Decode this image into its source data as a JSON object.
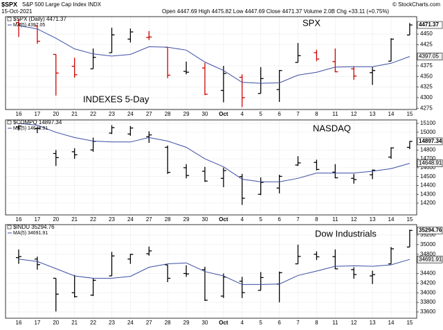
{
  "header": {
    "symbol": "$SPX",
    "name": "S&P 500 Large Cap Index INDX",
    "date": "15-Oct-2021",
    "quote": "Open 4447.69 High 4475.82 Low 4447.69 Close 4471.37 Volume 2.0B Chg +33.11 (+0.75%)",
    "source": "© StockCharts.com"
  },
  "chart_data": [
    {
      "type": "ohlc",
      "title": "SPX",
      "annotation": "INDEXES 5-Day",
      "grid": true,
      "categories": [
        "16",
        "17",
        "20",
        "21",
        "22",
        "23",
        "24",
        "27",
        "28",
        "29",
        "30",
        "Oct",
        "4",
        "5",
        "6",
        "7",
        "8",
        "11",
        "12",
        "13",
        "14",
        "15"
      ],
      "ylim": [
        4272,
        4491
      ],
      "yticks": [
        4275,
        4300,
        4325,
        4350,
        4375,
        4425,
        4450
      ],
      "series": [
        {
          "name": "$SPX (Daily) 4471.37",
          "last_value": 4471.37,
          "open": [
            4477,
            4469,
            4402,
            4374,
            4368,
            4406,
            4438,
            4442,
            4419,
            4362,
            4370,
            4317,
            4348,
            4310,
            4319,
            4383,
            4406,
            4385,
            4368,
            4359,
            4386,
            4447.69
          ],
          "high": [
            4485,
            4471,
            4402,
            4394,
            4416,
            4465,
            4463,
            4457,
            4419,
            4385,
            4382,
            4375,
            4355,
            4372,
            4365,
            4429,
            4413,
            4416,
            4374,
            4372,
            4440,
            4475.82
          ],
          "low": [
            4443,
            4427,
            4305,
            4347,
            4368,
            4406,
            4430,
            4436,
            4346,
            4355,
            4306,
            4289,
            4278,
            4310,
            4290,
            4383,
            4386,
            4360,
            4342,
            4330,
            4386,
            4447.69
          ],
          "close": [
            4474,
            4433,
            4358,
            4354,
            4395,
            4448,
            4455,
            4443,
            4353,
            4360,
            4308,
            4357,
            4300,
            4345,
            4364,
            4399,
            4391,
            4361,
            4351,
            4364,
            4438,
            4471.37
          ],
          "colors": [
            "#cc0000",
            "#cc0000",
            "#cc0000",
            "#cc0000",
            "#000000",
            "#000000",
            "#000000",
            "#cc0000",
            "#cc0000",
            "#000000",
            "#cc0000",
            "#000000",
            "#cc0000",
            "#000000",
            "#000000",
            "#000000",
            "#cc0000",
            "#cc0000",
            "#cc0000",
            "#000000",
            "#000000",
            "#000000"
          ]
        },
        {
          "name": "MA(5) 4397.05",
          "color": "#3b4ea3",
          "last_value": 4397.05,
          "values": [
            4470,
            4462,
            4440,
            4415,
            4403,
            4398,
            4402,
            4420,
            4419,
            4412,
            4384,
            4364,
            4336,
            4334,
            4335,
            4353,
            4360,
            4372,
            4373,
            4373,
            4381,
            4397.05
          ]
        }
      ]
    },
    {
      "type": "ohlc",
      "title": "NASDAQ",
      "grid": true,
      "categories": [
        "16",
        "17",
        "20",
        "21",
        "22",
        "23",
        "24",
        "27",
        "28",
        "29",
        "30",
        "Oct",
        "4",
        "5",
        "6",
        "7",
        "8",
        "11",
        "12",
        "13",
        "14",
        "15"
      ],
      "ylim": [
        14067,
        15139
      ],
      "yticks": [
        14200,
        14300,
        14400,
        14500,
        14600,
        14700,
        14800,
        15000,
        15100
      ],
      "series": [
        {
          "name": "$COMPQ 14897.34",
          "last_value": 14897.34,
          "color": "#000000",
          "open": [
            15060,
            15040,
            14760,
            14780,
            14800,
            14990,
            14980,
            14950,
            14830,
            14600,
            14560,
            14480,
            14500,
            14300,
            14370,
            14630,
            14660,
            14550,
            14480,
            14520,
            14720,
            14830
          ],
          "high": [
            15080,
            15050,
            14800,
            14820,
            14940,
            15080,
            15070,
            15010,
            14850,
            14640,
            14610,
            14600,
            14530,
            14490,
            14520,
            14730,
            14690,
            14640,
            14530,
            14580,
            14830,
            14900
          ],
          "low": [
            15020,
            14990,
            14620,
            14700,
            14780,
            14980,
            14960,
            14880,
            14530,
            14480,
            14440,
            14380,
            14180,
            14290,
            14310,
            14620,
            14570,
            14480,
            14420,
            14470,
            14700,
            14810
          ],
          "close": [
            15070,
            15044,
            14714,
            14746,
            14897,
            15052,
            15048,
            14970,
            14547,
            14512,
            14449,
            14567,
            14255,
            14434,
            14502,
            14654,
            14580,
            14486,
            14466,
            14572,
            14823,
            14897.34
          ]
        },
        {
          "name": "MA(5) 14648.91",
          "color": "#3b4ea3",
          "last_value": 14648.91,
          "values": [
            15100,
            15080,
            15000,
            14940,
            14900,
            14890,
            14890,
            14940,
            14900,
            14830,
            14700,
            14610,
            14470,
            14440,
            14440,
            14480,
            14540,
            14540,
            14540,
            14560,
            14590,
            14648.91
          ]
        }
      ]
    },
    {
      "type": "ohlc",
      "title": "Dow Industrials",
      "grid": true,
      "categories": [
        "16",
        "17",
        "20",
        "21",
        "22",
        "23",
        "24",
        "27",
        "28",
        "29",
        "30",
        "Oct",
        "4",
        "5",
        "6",
        "7",
        "8",
        "11",
        "12",
        "13",
        "14",
        "15"
      ],
      "ylim": [
        33470,
        35416
      ],
      "yticks": [
        33600,
        33800,
        34000,
        34200,
        34400,
        34800,
        35000,
        35200
      ],
      "series": [
        {
          "name": "$INDU 35294.76",
          "last_value": 35294.76,
          "color": "#000000",
          "open": [
            34730,
            34700,
            34300,
            34000,
            33950,
            34350,
            34700,
            34810,
            34580,
            34400,
            34480,
            33930,
            34240,
            34050,
            34180,
            34600,
            34800,
            34750,
            34480,
            34350,
            34600,
            34950
          ],
          "high": [
            34900,
            34750,
            34300,
            34370,
            34300,
            34850,
            34810,
            34960,
            34580,
            34570,
            34540,
            34400,
            34330,
            34430,
            34440,
            35000,
            34860,
            34900,
            34530,
            34460,
            34950,
            35310
          ],
          "low": [
            34600,
            34480,
            33610,
            33900,
            33930,
            34350,
            34600,
            34770,
            34220,
            34330,
            33830,
            33890,
            33890,
            34050,
            33800,
            34600,
            34680,
            34490,
            34290,
            34180,
            34600,
            34950
          ],
          "close": [
            34751,
            34584,
            33970,
            33919,
            34258,
            34765,
            34798,
            34870,
            34300,
            34390,
            33844,
            34326,
            34002,
            34315,
            34417,
            34755,
            34746,
            34496,
            34378,
            34377,
            34913,
            35294.76
          ]
        },
        {
          "name": "MA(5) 34691.91",
          "color": "#3b4ea3",
          "last_value": 34691.91,
          "values": [
            34700,
            34650,
            34500,
            34350,
            34300,
            34300,
            34340,
            34530,
            34600,
            34620,
            34440,
            34350,
            34170,
            34170,
            34180,
            34360,
            34450,
            34550,
            34560,
            34550,
            34580,
            34691.91
          ]
        }
      ]
    }
  ]
}
